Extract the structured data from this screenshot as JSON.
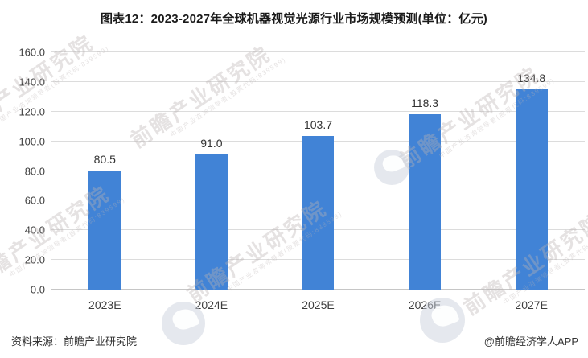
{
  "chart_data": {
    "type": "bar",
    "title": "图表12：2023-2027年全球机器视觉光源行业市场规模预测(单位：亿元)",
    "unit": "亿元",
    "categories": [
      "2023E",
      "2024E",
      "2025E",
      "2026E",
      "2027E"
    ],
    "values": [
      80.5,
      91.0,
      103.7,
      118.3,
      134.8
    ],
    "value_labels": [
      "80.5",
      "91.0",
      "103.7",
      "118.3",
      "134.8"
    ],
    "ylim": [
      0,
      160
    ],
    "ytick_step": 20,
    "ytick_labels": [
      "0.0",
      "20.0",
      "40.0",
      "60.0",
      "80.0",
      "100.0",
      "120.0",
      "140.0",
      "160.0"
    ],
    "grid": true,
    "legend_position": "none",
    "bar_color": "#4183d6",
    "gridline_color": "#dcdcdc"
  },
  "footer": {
    "source": "资料来源：前瞻产业研究院",
    "credit": "@前瞻经济学人APP"
  },
  "watermark": {
    "text": "前瞻产业研究院",
    "subtext": "中国产业咨询领导者(股票代码:839599)"
  }
}
